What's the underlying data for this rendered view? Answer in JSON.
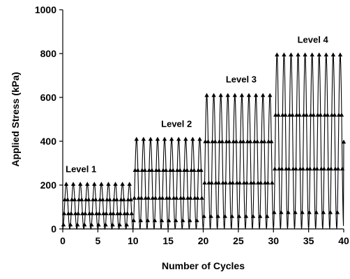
{
  "chart_data": {
    "type": "line",
    "title": "",
    "xlabel": "Number of Cycles",
    "ylabel": "Applied Stress (kPa)",
    "xlim": [
      0,
      40
    ],
    "ylim": [
      0,
      1000
    ],
    "xticks": [
      0,
      5,
      10,
      15,
      20,
      25,
      30,
      35,
      40
    ],
    "yticks": [
      0,
      200,
      400,
      600,
      800,
      1000
    ],
    "xtick_labels": [
      "0",
      "5",
      "10",
      "15",
      "20",
      "25",
      "30",
      "35",
      "40"
    ],
    "ytick_labels": [
      "0",
      "200",
      "400",
      "600",
      "800",
      "1000"
    ],
    "grid": false,
    "marker": "triangle",
    "levels": [
      {
        "label": "Level 1",
        "cycles": [
          0,
          10
        ],
        "peak_kPa": 205,
        "label_at": {
          "x": 2.6,
          "y": 258
        }
      },
      {
        "label": "Level 2",
        "cycles": [
          10,
          20
        ],
        "peak_kPa": 410,
        "label_at": {
          "x": 16.2,
          "y": 465
        }
      },
      {
        "label": "Level 3",
        "cycles": [
          20,
          30
        ],
        "peak_kPa": 610,
        "label_at": {
          "x": 25.4,
          "y": 668
        }
      },
      {
        "label": "Level 4",
        "cycles": [
          30,
          40
        ],
        "peak_kPa": 795,
        "label_at": {
          "x": 35.6,
          "y": 850
        }
      }
    ],
    "series": [
      {
        "description": "sinusoidal cyclic loading, one full cycle per unit on the x axis, minimum 0 kPa",
        "points_per_cycle": 24,
        "marker_phases": [
          0.1,
          0.2,
          0.3,
          0.5,
          0.7,
          0.8
        ]
      }
    ]
  }
}
